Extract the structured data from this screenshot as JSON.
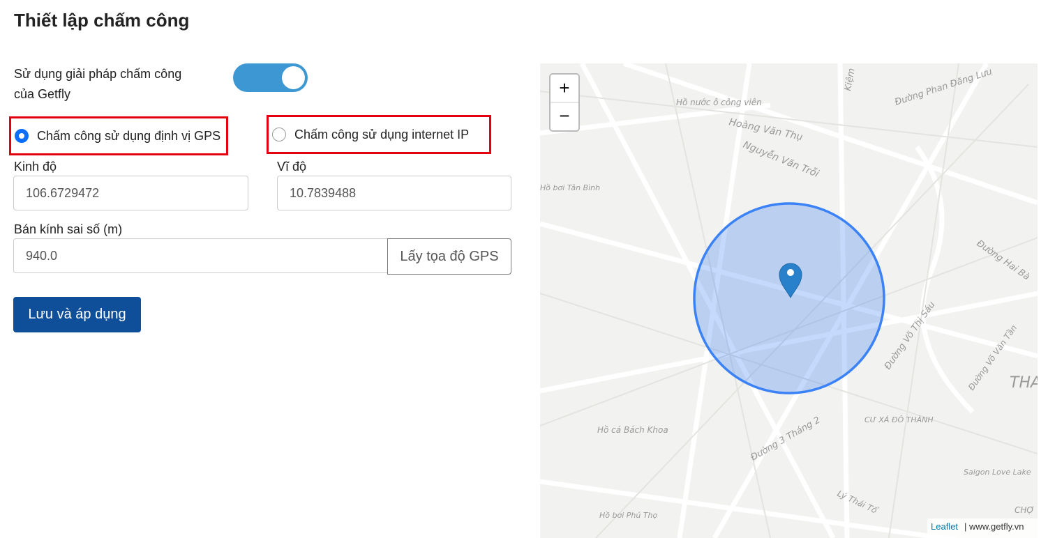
{
  "header": {
    "title": "Thiết lập chấm công"
  },
  "form": {
    "toggle_label": "Sử dụng giải pháp chấm công của Getfly",
    "toggle_on": true,
    "options": [
      {
        "label": "Chấm công sử dụng định vị GPS",
        "checked": true
      },
      {
        "label": "Chấm công sử dụng internet IP",
        "checked": false
      }
    ],
    "longitude": {
      "label": "Kinh độ",
      "value": "106.6729472"
    },
    "latitude": {
      "label": "Vĩ độ",
      "value": "10.7839488"
    },
    "radius": {
      "label": "Bán kính sai số (m)",
      "value": "940.0"
    },
    "gps_button": "Lấy tọa độ GPS",
    "save_button": "Lưu và áp dụng"
  },
  "map": {
    "zoom_in": "+",
    "zoom_out": "−",
    "labels": [
      "Hồ nước ô công viên",
      "Hoàng Văn Thụ",
      "Nguyễn Văn Trỗi",
      "Hồ bơi Tân Bình",
      "Đường Phan Đăng Lưu",
      "Kiệm",
      "Đường Hai Bà",
      "Đường Võ Thị Sáu",
      "Đường Võ Văn Tần",
      "THA",
      "Hồ cá Bách Khoa",
      "Đường 3 Tháng 2",
      "CƯ XÁ ĐÔ THÀNH",
      "Saigon Love Lake",
      "Lý Thái Tổ",
      "Hồ bơi Phú Thọ",
      "CHỢ"
    ],
    "attribution_link": "Leaflet",
    "attribution_text": "| www.getfly.vn"
  }
}
